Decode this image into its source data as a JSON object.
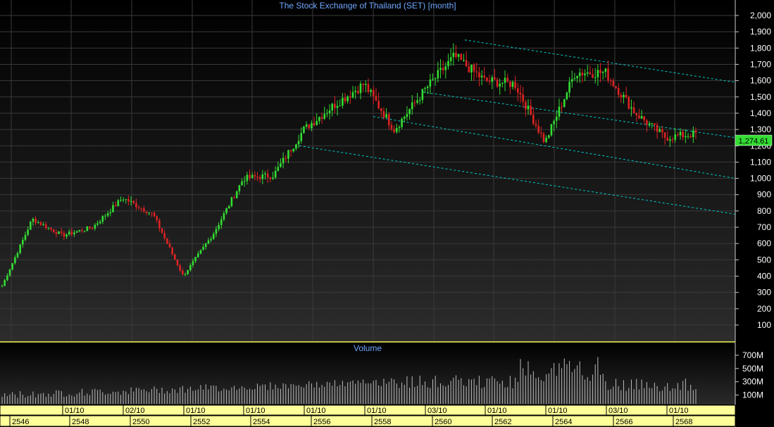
{
  "title": "The Stock Exchange of Thailand (SET) [month]",
  "volume_title": "Volume",
  "last_price_label": "1,274.61",
  "colors": {
    "up": "#33dd33",
    "down": "#dd2222",
    "grid": "#3a3a3a",
    "trendline": "#00cccc",
    "accent": "#ffff00",
    "title": "#6fa8ff",
    "axis_bar": "#ffff99",
    "volume_bar": "#bbbbbb"
  },
  "price_axis": {
    "ticks": [
      "2,000",
      "1,900",
      "1,800",
      "1,700",
      "1,600",
      "1,500",
      "1,400",
      "1,300",
      "1,200",
      "1,100",
      "1,000",
      "900",
      "800",
      "700",
      "600",
      "500",
      "400",
      "300",
      "200",
      "100"
    ],
    "tick_values": [
      2000,
      1900,
      1800,
      1700,
      1600,
      1500,
      1400,
      1300,
      1200,
      1100,
      1000,
      900,
      800,
      700,
      600,
      500,
      400,
      300,
      200,
      100
    ]
  },
  "volume_axis": {
    "ticks": [
      "700M",
      "500M",
      "300M",
      "100M"
    ],
    "tick_values": [
      700,
      500,
      300,
      100
    ]
  },
  "time_axis": {
    "upper_labels": [
      "01/10",
      "02/10",
      "01/10",
      "01/10",
      "01/10",
      "01/10",
      "03/10",
      "01/10",
      "01/10",
      "03/10",
      "01/10"
    ],
    "lower_labels": [
      "2546",
      "2548",
      "2550",
      "2552",
      "2554",
      "2556",
      "2558",
      "2560",
      "2562",
      "2564",
      "2566",
      "2568"
    ]
  },
  "chart_data": {
    "type": "candlestick",
    "title": "The Stock Exchange of Thailand (SET) [month]",
    "interval": "month",
    "ylim": [
      0,
      2050
    ],
    "x_range": [
      "2546",
      "2568"
    ],
    "last_close": 1274.61,
    "key_closes": [
      {
        "period": "2546",
        "close": 340
      },
      {
        "period": "2547",
        "close": 750
      },
      {
        "period": "2548",
        "close": 650
      },
      {
        "period": "2549",
        "close": 700
      },
      {
        "period": "2550",
        "close": 880
      },
      {
        "period": "2551",
        "close": 780
      },
      {
        "period": "2551 late",
        "close": 400
      },
      {
        "period": "2552",
        "close": 660
      },
      {
        "period": "2553",
        "close": 1000
      },
      {
        "period": "2554",
        "close": 1020
      },
      {
        "period": "2555",
        "close": 1300
      },
      {
        "period": "2556",
        "close": 1450
      },
      {
        "period": "2557",
        "close": 1580
      },
      {
        "period": "2558",
        "close": 1300
      },
      {
        "period": "2559",
        "close": 1540
      },
      {
        "period": "2560",
        "close": 1750
      },
      {
        "period": "2561",
        "close": 1600
      },
      {
        "period": "2562",
        "close": 1580
      },
      {
        "period": "2563",
        "close": 1220
      },
      {
        "period": "2564",
        "close": 1650
      },
      {
        "period": "2565",
        "close": 1650
      },
      {
        "period": "2566",
        "close": 1400
      },
      {
        "period": "2567",
        "close": 1250
      },
      {
        "period": "2568",
        "close": 1274.61
      }
    ],
    "volume_unit": "M",
    "volume_ylim": [
      0,
      800
    ]
  }
}
